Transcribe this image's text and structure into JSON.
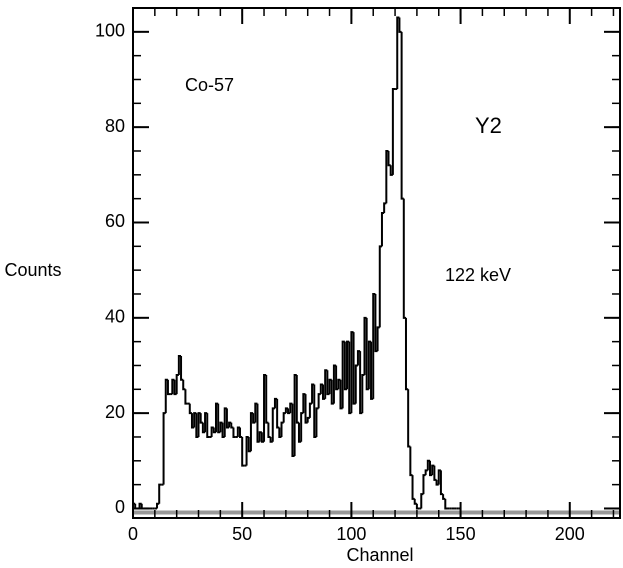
{
  "chart_data": {
    "type": "histogram",
    "xlabel": "Channel",
    "ylabel": "Counts",
    "annotations": [
      "Co-57",
      "Y2",
      "122 keV"
    ],
    "bins": [
      0,
      1,
      2,
      3,
      4,
      5,
      6,
      7,
      8,
      9,
      10,
      11,
      12,
      13,
      14,
      15,
      16,
      17,
      18,
      19,
      20,
      21,
      22,
      23,
      24,
      25,
      26,
      27,
      28,
      29,
      30,
      31,
      32,
      33,
      34,
      35,
      36,
      37,
      38,
      39,
      40,
      41,
      42,
      43,
      44,
      45,
      46,
      47,
      48,
      49,
      50,
      51,
      52,
      53,
      54,
      55,
      56,
      57,
      58,
      59,
      60,
      61,
      62,
      63,
      64,
      65,
      66,
      67,
      68,
      69,
      70,
      71,
      72,
      73,
      74,
      75,
      76,
      77,
      78,
      79,
      80,
      81,
      82,
      83,
      84,
      85,
      86,
      87,
      88,
      89,
      90,
      91,
      92,
      93,
      94,
      95,
      96,
      97,
      98,
      99,
      100,
      101,
      102,
      103,
      104,
      105,
      106,
      107,
      108,
      109,
      110,
      111,
      112,
      113,
      114,
      115,
      116,
      117,
      118,
      119,
      120,
      121,
      122,
      123,
      124,
      125,
      126,
      127,
      128,
      129,
      130,
      131,
      132,
      133,
      134,
      135,
      136,
      137,
      138,
      139,
      140,
      141,
      142,
      143,
      144,
      145,
      146,
      147,
      148,
      149,
      150
    ],
    "counts": [
      1,
      0,
      0,
      1,
      0,
      0,
      0,
      0,
      0,
      0,
      0,
      1,
      5,
      5,
      20,
      27,
      24,
      24,
      27,
      24,
      28,
      32,
      27,
      25,
      22,
      22,
      20,
      17,
      20,
      15,
      20,
      18,
      16,
      20,
      15,
      15,
      17,
      16,
      22,
      16,
      18,
      15,
      21,
      17,
      18,
      17,
      15,
      15,
      17,
      15,
      9,
      9,
      15,
      12,
      20,
      18,
      22,
      14,
      16,
      14,
      28,
      18,
      15,
      14,
      21,
      23,
      17,
      15,
      18,
      20,
      21,
      20,
      22,
      11,
      28,
      18,
      14,
      20,
      24,
      18,
      19,
      22,
      26,
      15,
      21,
      24,
      26,
      23,
      29,
      24,
      27,
      22,
      30,
      25,
      27,
      21,
      35,
      25,
      35,
      20,
      37,
      22,
      30,
      33,
      20,
      28,
      40,
      25,
      35,
      23,
      45,
      33,
      38,
      55,
      62,
      64,
      75,
      72,
      70,
      88,
      88,
      103,
      100,
      65,
      40,
      25,
      13,
      7,
      2,
      1,
      0,
      0,
      3,
      7,
      8,
      10,
      7,
      9,
      6,
      5,
      8,
      3,
      2,
      0,
      0,
      0,
      0,
      0,
      0,
      0
    ],
    "color": "#000000",
    "xlim": [
      0,
      223
    ],
    "ylim": [
      -2,
      105
    ],
    "xticks": [
      0,
      50,
      100,
      150,
      200
    ],
    "yticks": [
      0,
      20,
      40,
      60,
      80,
      100
    ]
  }
}
